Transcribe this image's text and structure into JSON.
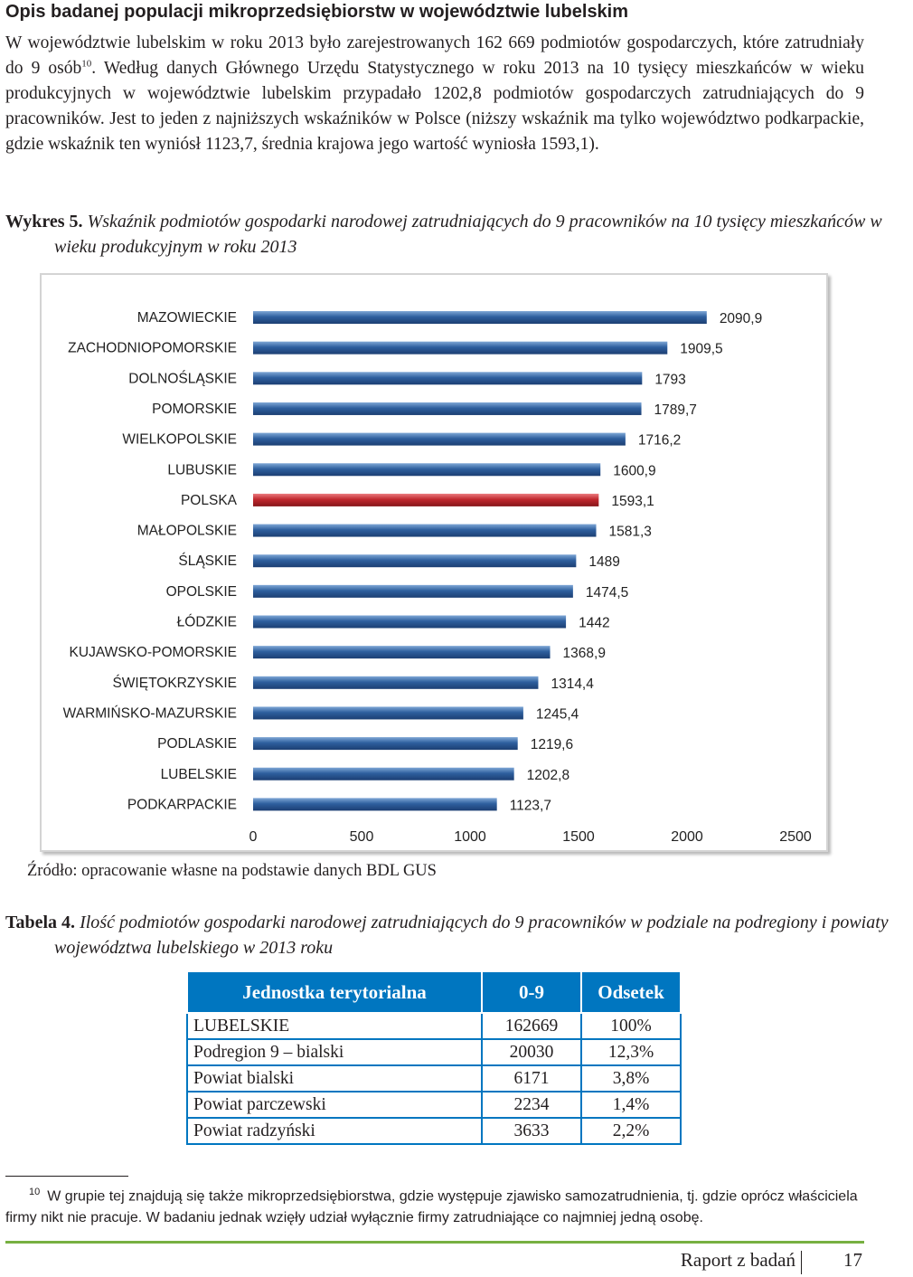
{
  "section_title": "Opis badanej populacji mikroprzedsiębiorstw w województwie lubelskim",
  "paragraph": {
    "before_note": "W województwie lubelskim w roku 2013 było zarejestrowanych 162 669 podmiotów gospodarczych, które zatrudniały do 9 osób",
    "note_ref": "10",
    "after_note": ". Według danych Głównego Urzędu Statystycznego w roku 2013 na 10 tysięcy mieszkańców w wieku produkcyjnych w województwie lubelskim przypadało 1202,8 podmiotów gospodarczych zatrudniających do 9 pracowników. Jest to jeden z najniższych wskaźników w Polsce (niższy wskaźnik ma tylko województwo podkarpackie, gdzie wskaźnik ten wyniósł 1123,7, średnia krajowa jego wartość wyniosła 1593,1)."
  },
  "figure": {
    "label": "Wykres 5.",
    "caption": "Wskaźnik podmiotów gospodarki narodowej zatrudniających do 9 pracowników na 10 tysięcy mieszkańców w wieku produkcyjnym w roku 2013",
    "source": "Źródło: opracowanie własne na podstawie danych BDL GUS"
  },
  "chart_data": {
    "type": "bar",
    "orientation": "horizontal",
    "title": "",
    "xlabel": "",
    "ylabel": "",
    "xlim": [
      0,
      2500
    ],
    "xticks": [
      "0",
      "500",
      "1000",
      "1500",
      "2000",
      "2500"
    ],
    "grid": false,
    "legend": false,
    "categories": [
      "MAZOWIECKIE",
      "ZACHODNIOPOMORSKIE",
      "DOLNOŚLĄSKIE",
      "POMORSKIE",
      "WIELKOPOLSKIE",
      "LUBUSKIE",
      "POLSKA",
      "MAŁOPOLSKIE",
      "ŚLĄSKIE",
      "OPOLSKIE",
      "ŁÓDZKIE",
      "KUJAWSKO-POMORSKIE",
      "ŚWIĘTOKRZYSKIE",
      "WARMIŃSKO-MAZURSKIE",
      "PODLASKIE",
      "LUBELSKIE",
      "PODKARPACKIE"
    ],
    "values": [
      2090.9,
      1909.5,
      1793,
      1789.7,
      1716.2,
      1600.9,
      1593.1,
      1581.3,
      1489,
      1474.5,
      1442,
      1368.9,
      1314.4,
      1245.4,
      1219.6,
      1202.8,
      1123.7
    ],
    "value_labels": [
      "2090,9",
      "1909,5",
      "1793",
      "1789,7",
      "1716,2",
      "1600,9",
      "1593,1",
      "1581,3",
      "1489",
      "1474,5",
      "1442",
      "1368,9",
      "1314,4",
      "1245,4",
      "1219,6",
      "1202,8",
      "1123,7"
    ],
    "highlight": "POLSKA",
    "colors": {
      "bar": "#2e5f9e",
      "highlight": "#c0282e"
    }
  },
  "table": {
    "label": "Tabela 4.",
    "caption": "Ilość podmiotów gospodarki narodowej zatrudniających do 9 pracowników w podziale na podregiony i powiaty województwa lubelskiego w 2013 roku",
    "headers": [
      "Jednostka terytorialna",
      "0-9",
      "Odsetek"
    ],
    "rows": [
      [
        "LUBELSKIE",
        "162669",
        "100%"
      ],
      [
        "Podregion 9 – bialski",
        "20030",
        "12,3%"
      ],
      [
        "Powiat bialski",
        "6171",
        "3,8%"
      ],
      [
        "Powiat parczewski",
        "2234",
        "1,4%"
      ],
      [
        "Powiat radzyński",
        "3633",
        "2,2%"
      ]
    ],
    "colors": {
      "header_bg": "#0076c0",
      "border": "#0076c0"
    }
  },
  "footnote": {
    "number": "10",
    "text": "W grupie tej znajdują się także mikroprzedsiębiorstwa, gdzie występuje zjawisko samozatrudnienia, tj. gdzie oprócz właściciela firmy nikt nie pracuje. W badaniu jednak wzięły udział wyłącznie firmy zatrudniające co najmniej jedną osobę."
  },
  "footer": {
    "text": "Raport z badań",
    "page": "17",
    "rule_color": "#77b041"
  }
}
